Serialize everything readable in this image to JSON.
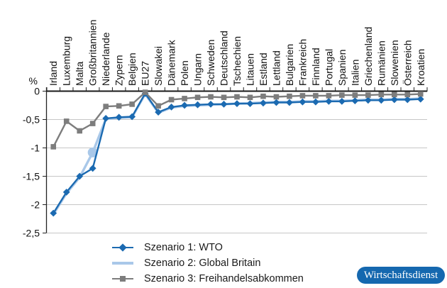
{
  "chart_data": {
    "type": "line",
    "title": "",
    "unit_label": "%",
    "categories": [
      "Irland",
      "Luxemburg",
      "Malta",
      "Großbritannien",
      "Niederlande",
      "Zypern",
      "Belgien",
      "EU27",
      "Slowakei",
      "Dänemark",
      "Polen",
      "Ungarn",
      "Schweden",
      "Deutschland",
      "Tschechien",
      "Litauen",
      "Estland",
      "Lettland",
      "Bulgarien",
      "Frankreich",
      "Finnland",
      "Portugal",
      "Spanien",
      "Italien",
      "Griechenland",
      "Rumänien",
      "Slowenien",
      "Österreich",
      "Kroatien"
    ],
    "series": [
      {
        "name": "Szenario 1: WTO",
        "color": "#1b6ab1",
        "marker": "diamond",
        "values": [
          -2.15,
          -1.78,
          -1.5,
          -1.36,
          -0.48,
          -0.46,
          -0.45,
          -0.04,
          -0.37,
          -0.28,
          -0.25,
          -0.24,
          -0.23,
          -0.23,
          -0.22,
          -0.22,
          -0.21,
          -0.2,
          -0.2,
          -0.19,
          -0.19,
          -0.18,
          -0.18,
          -0.17,
          -0.16,
          -0.16,
          -0.15,
          -0.15,
          -0.14
        ]
      },
      {
        "name": "Szenario 2: Global Britain",
        "color": "#a9c8e9",
        "marker": "circle",
        "marker_index": 3,
        "values": [
          -2.17,
          -1.8,
          -1.52,
          -1.08,
          -0.49,
          -0.47,
          -0.46,
          -0.05,
          -0.38,
          -0.29,
          -0.26,
          -0.25,
          -0.24,
          -0.23,
          -0.22,
          -0.21,
          -0.2,
          -0.19,
          -0.19,
          -0.18,
          -0.18,
          -0.17,
          -0.17,
          -0.16,
          -0.15,
          -0.15,
          -0.14,
          -0.14,
          -0.13
        ]
      },
      {
        "name": "Szenario 3: Freihandelsabkommen",
        "color": "#7d7d7d",
        "marker": "square",
        "values": [
          -0.98,
          -0.53,
          -0.7,
          -0.57,
          -0.27,
          -0.26,
          -0.23,
          -0.02,
          -0.26,
          -0.15,
          -0.13,
          -0.11,
          -0.1,
          -0.11,
          -0.1,
          -0.11,
          -0.09,
          -0.1,
          -0.09,
          -0.08,
          -0.08,
          -0.08,
          -0.07,
          -0.07,
          -0.07,
          -0.06,
          -0.06,
          -0.06,
          -0.05
        ]
      }
    ],
    "ylim": [
      -2.5,
      0
    ],
    "yticks": [
      0,
      -0.5,
      -1,
      -1.5,
      -2,
      -2.5
    ],
    "ytick_labels": [
      "0",
      "-0,5",
      "-1",
      "-1,5",
      "-2",
      "-2,5"
    ],
    "grid": true,
    "legend_position": "bottom-left"
  },
  "badge": {
    "text": "Wirtschaftsdienst",
    "bg_color": "#1568af",
    "text_color": "#ffffff"
  }
}
